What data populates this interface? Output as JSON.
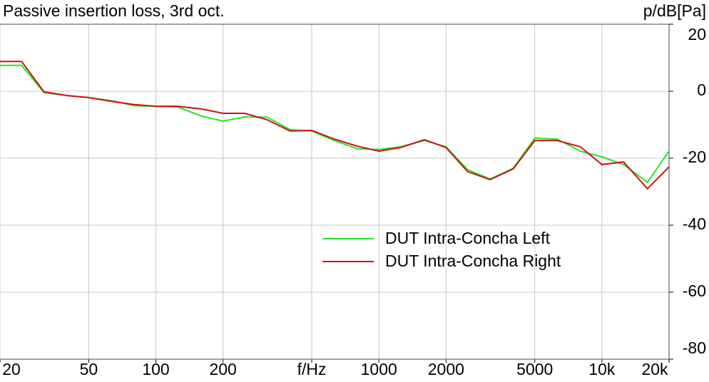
{
  "chart_data": {
    "type": "line",
    "title": "Passive insertion loss, 3rd oct.",
    "y_label": "p/dB[Pa]",
    "x": [
      20,
      25,
      31.5,
      40,
      50,
      63,
      80,
      100,
      125,
      160,
      200,
      250,
      315,
      400,
      500,
      630,
      800,
      1000,
      1250,
      1600,
      2000,
      2500,
      3150,
      4000,
      5000,
      6300,
      8000,
      10000,
      12500,
      16000,
      20000
    ],
    "series": [
      {
        "name": "DUT Intra-Concha Left",
        "color": "#22e622",
        "values": [
          7.7,
          7.7,
          -0.4,
          -1.3,
          -1.9,
          -2.8,
          -4.3,
          -4.5,
          -4.7,
          -7.4,
          -8.9,
          -7.7,
          -7.7,
          -11.5,
          -11.9,
          -14.7,
          -17.2,
          -17.4,
          -16.6,
          -14.7,
          -16.6,
          -23.4,
          -26.2,
          -23.0,
          -14.0,
          -14.3,
          -17.9,
          -19.6,
          -21.9,
          -27.2,
          -17.9
        ]
      },
      {
        "name": "DUT Intra-Concha Right",
        "color": "#cc1111",
        "values": [
          8.9,
          8.9,
          -0.2,
          -1.3,
          -1.9,
          -3.0,
          -4.0,
          -4.5,
          -4.5,
          -5.3,
          -6.6,
          -6.6,
          -8.5,
          -11.9,
          -11.7,
          -14.3,
          -16.4,
          -17.9,
          -16.8,
          -14.5,
          -16.8,
          -24.0,
          -26.4,
          -23.2,
          -14.7,
          -14.7,
          -16.6,
          -21.9,
          -21.1,
          -29.1,
          -22.6
        ]
      }
    ],
    "xscale": "log",
    "xlim": [
      20,
      20000
    ],
    "xticks": [
      20,
      50,
      100,
      200,
      {
        "value": 500,
        "label": "f/Hz"
      },
      1000,
      2000,
      5000,
      {
        "value": 10000,
        "label": "10k"
      },
      {
        "value": 20000,
        "label": "20k"
      }
    ],
    "ylim": [
      -80,
      20
    ],
    "yticks": [
      20,
      0,
      -20,
      -40,
      -60,
      -80
    ],
    "grid": true,
    "legend": "center right"
  }
}
